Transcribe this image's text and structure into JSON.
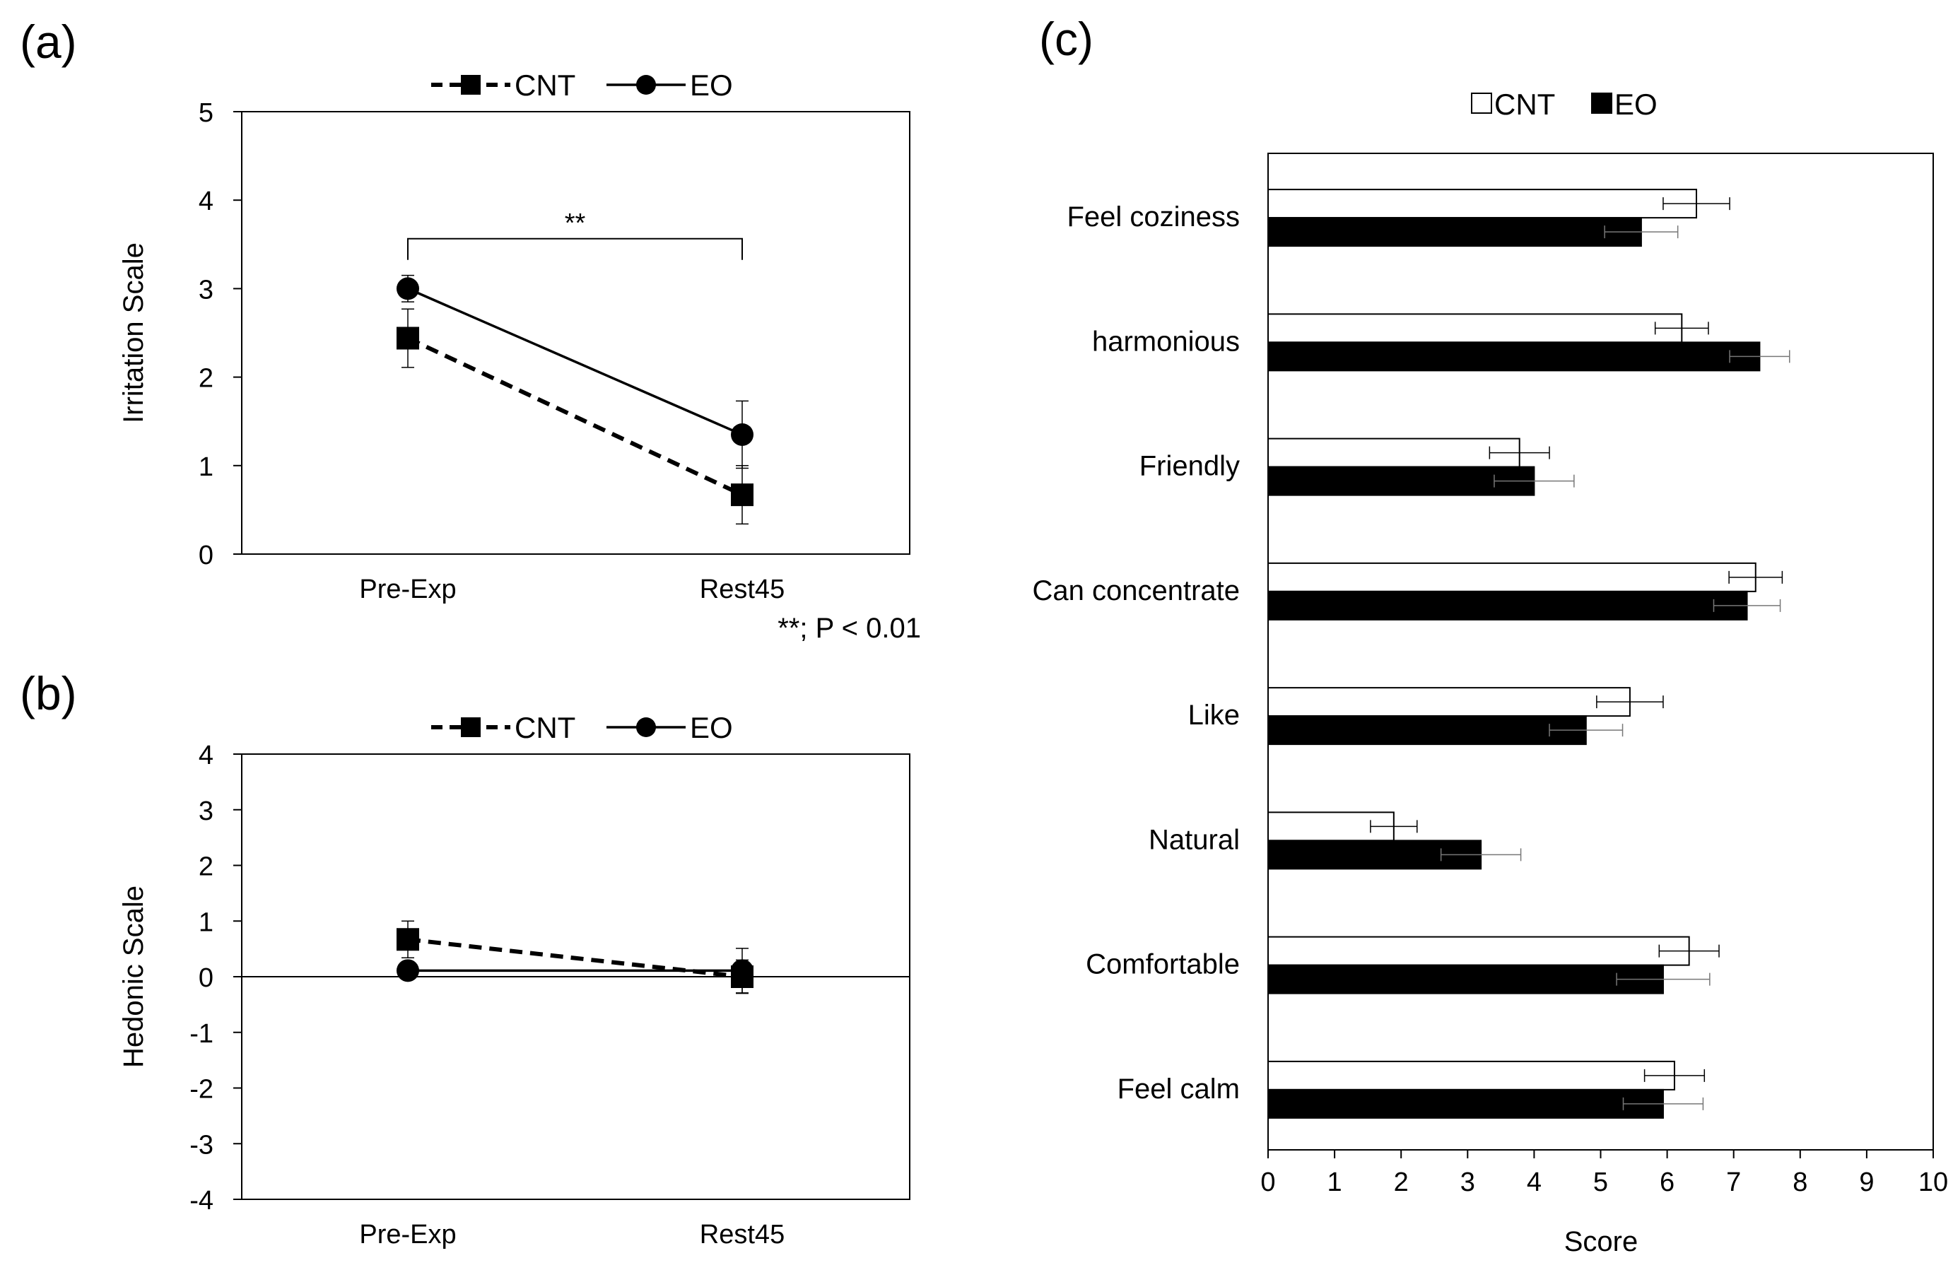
{
  "charts": {
    "a": {
      "panel_label": "(a)",
      "type": "line",
      "categories": [
        "Pre-Exp",
        "Rest45"
      ],
      "ylabel": "Irritation Scale",
      "ylim": [
        0,
        5
      ],
      "yticks": [
        "0",
        "1",
        "2",
        "3",
        "4",
        "5"
      ],
      "series": [
        {
          "name": "CNT",
          "values": [
            2.44,
            0.67
          ],
          "error": [
            0.33,
            0.33
          ],
          "style": "dashed",
          "marker": "square",
          "color": "#000000"
        },
        {
          "name": "EO",
          "values": [
            3.0,
            1.35
          ],
          "error": [
            0.15,
            0.38
          ],
          "style": "solid",
          "marker": "circle",
          "color": "#000000"
        }
      ],
      "annotation": {
        "text": "**",
        "from": "Pre-Exp",
        "to": "Rest45",
        "y": 3.5
      },
      "note": "**; P < 0.01",
      "grid": false,
      "legend": "top"
    },
    "b": {
      "panel_label": "(b)",
      "type": "line",
      "categories": [
        "Pre-Exp",
        "Rest45"
      ],
      "ylabel": "Hedonic Scale",
      "ylim": [
        -4,
        4
      ],
      "yticks": [
        "-4",
        "-3",
        "-2",
        "-1",
        "0",
        "1",
        "2",
        "3",
        "4"
      ],
      "series": [
        {
          "name": "CNT",
          "values": [
            0.67,
            0.0
          ],
          "error": [
            0.33,
            0.3
          ],
          "style": "dashed",
          "marker": "square",
          "color": "#000000"
        },
        {
          "name": "EO",
          "values": [
            0.11,
            0.11
          ],
          "error": [
            0.1,
            0.4
          ],
          "style": "solid",
          "marker": "circle",
          "color": "#000000"
        }
      ],
      "grid": false,
      "legend": "top"
    },
    "c": {
      "panel_label": "(c)",
      "type": "bar",
      "orientation": "horizontal",
      "categories": [
        "Feel coziness",
        "harmonious",
        "Friendly",
        "Can concentrate",
        "Like",
        "Natural",
        "Comfortable",
        "Feel calm"
      ],
      "xlabel": "Score",
      "xlim": [
        0,
        10
      ],
      "xticks": [
        "0",
        "1",
        "2",
        "3",
        "4",
        "5",
        "6",
        "7",
        "8",
        "9",
        "10"
      ],
      "series": [
        {
          "name": "CNT",
          "values": [
            6.44,
            6.22,
            3.78,
            7.33,
            5.44,
            1.89,
            6.33,
            6.11
          ],
          "error": [
            0.5,
            0.4,
            0.45,
            0.4,
            0.5,
            0.35,
            0.45,
            0.45
          ],
          "fill": "#ffffff"
        },
        {
          "name": "EO",
          "values": [
            5.61,
            7.39,
            4.0,
            7.2,
            4.78,
            3.2,
            5.94,
            5.94
          ],
          "error": [
            0.55,
            0.45,
            0.6,
            0.5,
            0.55,
            0.6,
            0.7,
            0.6
          ],
          "fill": "#000000"
        }
      ],
      "grid": false,
      "legend": "top"
    }
  }
}
